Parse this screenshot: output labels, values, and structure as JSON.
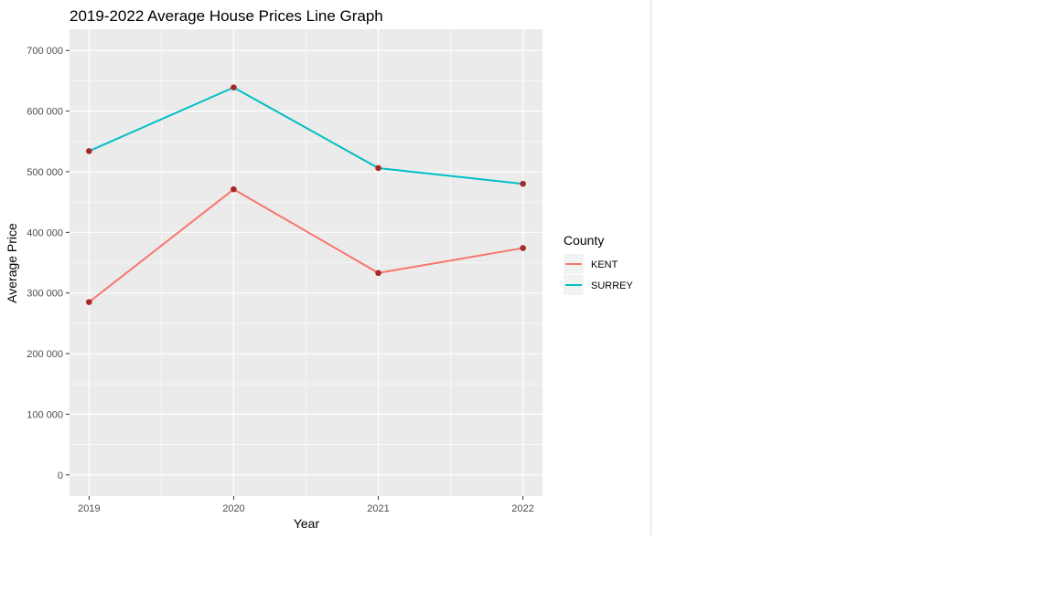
{
  "chart_data": {
    "type": "line",
    "title": "2019-2022 Average House Prices Line Graph",
    "xlabel": "Year",
    "ylabel": "Average Price",
    "x": [
      2019,
      2020,
      2021,
      2022
    ],
    "x_tick_labels": [
      "2019",
      "2020",
      "2021",
      "2022"
    ],
    "ylim": [
      -35000,
      735000
    ],
    "y_ticks": [
      0,
      100000,
      200000,
      300000,
      400000,
      500000,
      600000,
      700000
    ],
    "y_tick_labels": [
      "0",
      "100 000",
      "200 000",
      "300 000",
      "400 000",
      "500 000",
      "600 000",
      "700 000"
    ],
    "grid": true,
    "panel_background": "#EBEBEB",
    "point_color": "#A52A2A",
    "legend": {
      "title": "County",
      "position": "right"
    },
    "series": [
      {
        "name": "KENT",
        "color": "#F8766D",
        "values": [
          285000,
          471000,
          333000,
          374000
        ]
      },
      {
        "name": "SURREY",
        "color": "#00BFC4",
        "values": [
          534000,
          639000,
          506000,
          480000
        ]
      }
    ]
  }
}
